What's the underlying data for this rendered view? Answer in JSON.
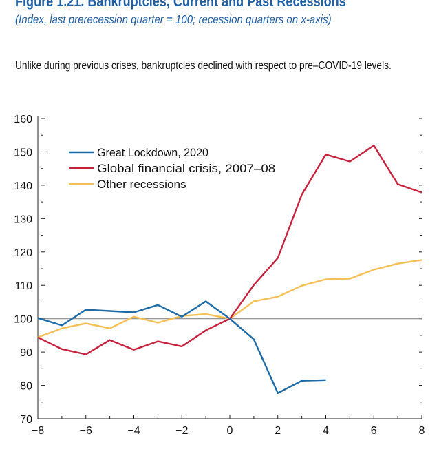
{
  "title": "Figure 1.21.  Bankruptcies, Current and Past Recessions",
  "subtitle": "(Index, last prerecession quarter = 100; recession quarters on x-axis)",
  "description": "Unlike during previous crises, bankruptcies declined with respect to pre–COVID-19 levels.",
  "chart_data": {
    "type": "line",
    "title": "Figure 1.21.  Bankruptcies, Current and Past Recessions",
    "xlabel": "",
    "ylabel": "",
    "xlim": [
      -8,
      8
    ],
    "ylim": [
      70,
      160
    ],
    "xticks": [
      "−8",
      "−6",
      "−4",
      "−2",
      "0",
      "2",
      "4",
      "6",
      "8"
    ],
    "xtick_values": [
      -8,
      -6,
      -4,
      -2,
      0,
      2,
      4,
      6,
      8
    ],
    "yticks": [
      70,
      80,
      90,
      100,
      110,
      120,
      130,
      140,
      150,
      160
    ],
    "reference_line": 100,
    "legend_position": "top-left",
    "series": [
      {
        "name": "Great Lockdown, 2020",
        "color": "#1c6aa8",
        "x": [
          -8,
          -7,
          -6,
          -5,
          -4,
          -3,
          -2,
          -1,
          0,
          1,
          2,
          3,
          4
        ],
        "values": [
          100.2,
          98,
          102.7,
          102.3,
          101.9,
          104.1,
          100.6,
          105.2,
          100,
          93.8,
          77.7,
          81.4,
          81.6
        ]
      },
      {
        "name": "Global financial crisis, 2007–08",
        "color": "#c8213d",
        "x": [
          -8,
          -7,
          -6,
          -5,
          -4,
          -3,
          -2,
          -1,
          0,
          1,
          2,
          3,
          4,
          5,
          6,
          7,
          8
        ],
        "values": [
          94.4,
          90.9,
          89.3,
          93.6,
          90.7,
          93.2,
          91.7,
          96.5,
          100,
          110.1,
          118.2,
          137.2,
          149.2,
          147.1,
          151.9,
          140.3,
          137.8
        ]
      },
      {
        "name": "Other recessions",
        "color": "#f5bf55",
        "x": [
          -8,
          -7,
          -6,
          -5,
          -4,
          -3,
          -2,
          -1,
          0,
          1,
          2,
          3,
          4,
          5,
          6,
          7,
          8
        ],
        "values": [
          94.4,
          97.1,
          98.6,
          97.1,
          100.6,
          98.8,
          100.8,
          101.4,
          100,
          105.2,
          106.6,
          109.9,
          111.8,
          112,
          114.7,
          116.5,
          117.6
        ]
      }
    ]
  }
}
